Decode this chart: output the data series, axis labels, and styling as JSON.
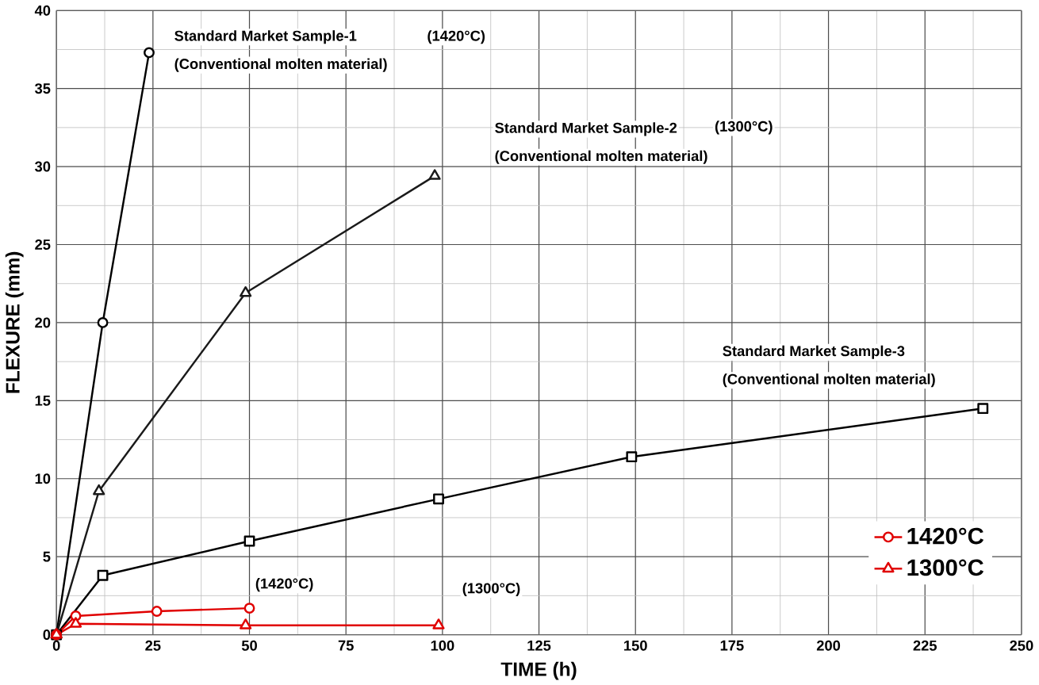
{
  "chart_data": {
    "type": "line",
    "xlabel": "TIME (h)",
    "ylabel": "FLEXURE (mm)",
    "xlim": [
      0,
      250
    ],
    "ylim": [
      0,
      40
    ],
    "xticks": [
      0,
      25,
      50,
      75,
      100,
      125,
      150,
      175,
      200,
      225,
      250
    ],
    "yticks": [
      0,
      5,
      10,
      15,
      20,
      25,
      30,
      35,
      40
    ],
    "grid": true,
    "legend": "bottom right",
    "series": [
      {
        "color": "#000000",
        "marker": "circle",
        "x": [
          0,
          12,
          24
        ],
        "values": [
          0,
          20,
          37.3
        ]
      },
      {
        "color": "#1a1a1a",
        "marker": "triangle",
        "x": [
          0,
          11,
          49,
          98
        ],
        "values": [
          0,
          9.2,
          21.9,
          29.4
        ]
      },
      {
        "color": "#000000",
        "marker": "square",
        "x": [
          0,
          12,
          50,
          99,
          149,
          240
        ],
        "values": [
          0,
          3.8,
          6,
          8.7,
          11.4,
          14.5
        ]
      },
      {
        "name": "1420°C",
        "color": "#e00000",
        "marker": "circle",
        "x": [
          0,
          5,
          26,
          50
        ],
        "values": [
          0,
          1.2,
          1.5,
          1.7
        ]
      },
      {
        "name": "1300°C",
        "color": "#e00000",
        "marker": "triangle",
        "x": [
          0,
          5,
          49,
          99
        ],
        "values": [
          0,
          0.7,
          0.6,
          0.6
        ]
      }
    ],
    "annotations": [
      "Standard Market Sample-1",
      "(Conventional molten material)",
      "(1420°C)",
      "Standard Market Sample-2",
      "(Conventional molten material)",
      "(1300°C)",
      "Standard Market Sample-3",
      "(Conventional molten material)",
      "(1420°C)",
      "(1300°C)"
    ]
  }
}
